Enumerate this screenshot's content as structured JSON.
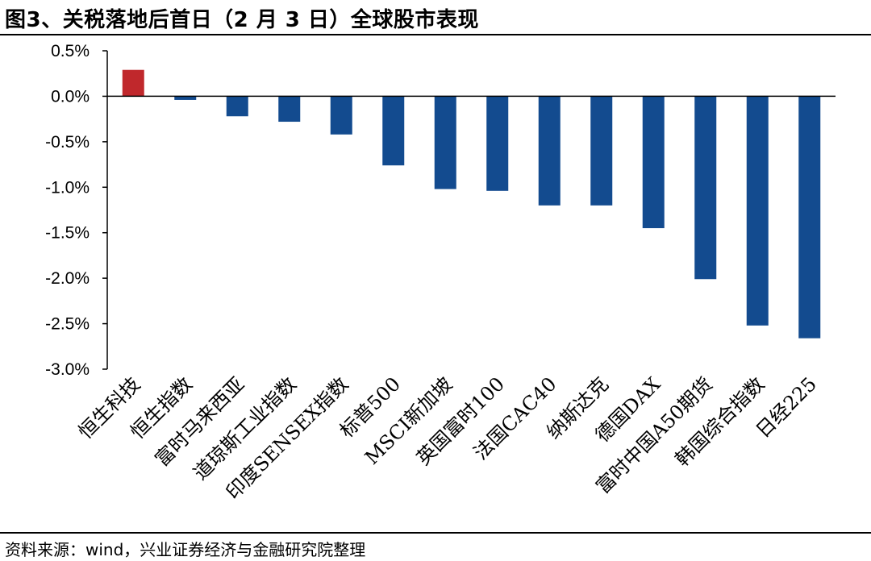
{
  "title": "图3、关税落地后首日（2 月 3 日）全球股市表现",
  "source": "资料来源：wind，兴业证券经济与金融研究院整理",
  "colors": {
    "positive": "#c0282c",
    "negative": "#134b8f",
    "axis": "#000000"
  },
  "chart_data": {
    "type": "bar",
    "title": "图3、关税落地后首日（2 月 3 日）全球股市表现",
    "xlabel": "",
    "ylabel": "",
    "ylim": [
      -0.03,
      0.005
    ],
    "yticks": [
      0.005,
      0.0,
      -0.005,
      -0.01,
      -0.015,
      -0.02,
      -0.025,
      -0.03
    ],
    "ytick_labels": [
      "0.5%",
      "0.0%",
      "-0.5%",
      "-1.0%",
      "-1.5%",
      "-2.0%",
      "-2.5%",
      "-3.0%"
    ],
    "grid": false,
    "legend": "none",
    "categories": [
      "恒生科技",
      "恒生指数",
      "富时马来西亚",
      "道琼斯工业指数",
      "印度SENSEX指数",
      "标普500",
      "MSCI新加坡",
      "英国富时100",
      "法国CAC40",
      "纳斯达克",
      "德国DAX",
      "富时中国A50期货",
      "韩国综合指数",
      "日经225"
    ],
    "values": [
      0.0029,
      -0.0004,
      -0.0022,
      -0.0028,
      -0.0042,
      -0.0076,
      -0.0102,
      -0.0104,
      -0.012,
      -0.012,
      -0.0145,
      -0.0201,
      -0.0252,
      -0.0266
    ]
  }
}
